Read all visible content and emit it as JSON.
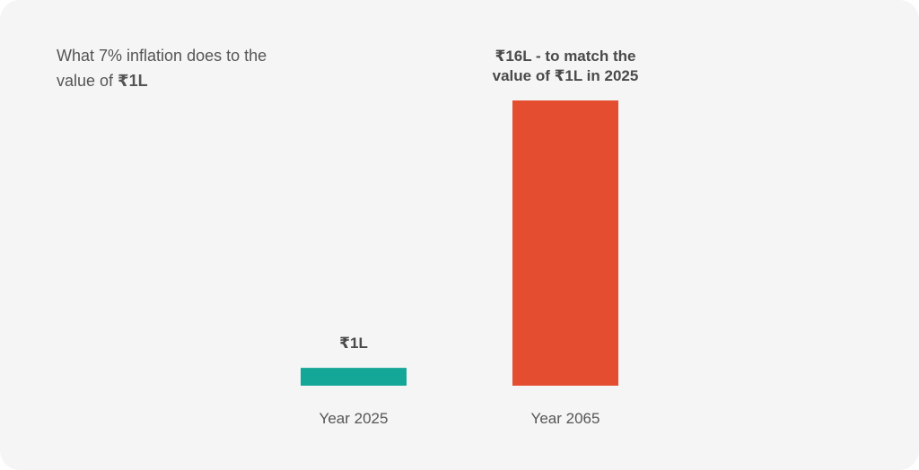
{
  "chart_data": {
    "type": "bar",
    "title_prefix": "What 7% inflation does to the value of ",
    "title_emphasis": "₹1L",
    "categories": [
      "Year 2025",
      "Year 2065"
    ],
    "values": [
      1,
      16
    ],
    "unit": "L (lakh ₹)",
    "data_labels": [
      [
        "₹1L"
      ],
      [
        "₹16L - to match the",
        "value of ₹1L in 2025"
      ]
    ],
    "ylim": [
      0,
      16
    ],
    "grid": false,
    "legend": "none",
    "colors": [
      "#14a797",
      "#e44d2f"
    ]
  }
}
